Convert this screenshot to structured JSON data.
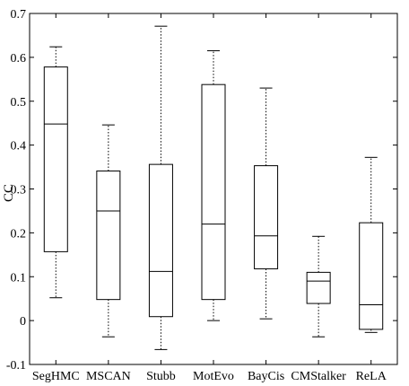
{
  "chart_data": {
    "type": "box",
    "title": "",
    "xlabel": "",
    "ylabel": "CC",
    "ylim": [
      -0.1,
      0.7
    ],
    "yticks": [
      "-0.1",
      "0",
      "0.1",
      "0.2",
      "0.3",
      "0.4",
      "0.5",
      "0.6",
      "0.7"
    ],
    "grid": false,
    "categories": [
      "SegHMC",
      "MSCAN",
      "Stubb",
      "MotEvo",
      "BayCis",
      "CMStalker",
      "ReLA"
    ],
    "boxes": [
      {
        "name": "SegHMC",
        "whisker_low": 0.052,
        "q1": 0.157,
        "median": 0.448,
        "q3": 0.578,
        "whisker_high": 0.624
      },
      {
        "name": "MSCAN",
        "whisker_low": -0.037,
        "q1": 0.048,
        "median": 0.25,
        "q3": 0.341,
        "whisker_high": 0.446
      },
      {
        "name": "Stubb",
        "whisker_low": -0.066,
        "q1": 0.009,
        "median": 0.112,
        "q3": 0.356,
        "whisker_high": 0.671
      },
      {
        "name": "MotEvo",
        "whisker_low": 0.0,
        "q1": 0.048,
        "median": 0.22,
        "q3": 0.538,
        "whisker_high": 0.615
      },
      {
        "name": "BayCis",
        "whisker_low": 0.004,
        "q1": 0.118,
        "median": 0.193,
        "q3": 0.353,
        "whisker_high": 0.53
      },
      {
        "name": "CMStalker",
        "whisker_low": -0.037,
        "q1": 0.039,
        "median": 0.09,
        "q3": 0.11,
        "whisker_high": 0.192
      },
      {
        "name": "ReLA",
        "whisker_low": -0.027,
        "q1": -0.02,
        "median": 0.036,
        "q3": 0.223,
        "whisker_high": 0.372
      }
    ]
  }
}
